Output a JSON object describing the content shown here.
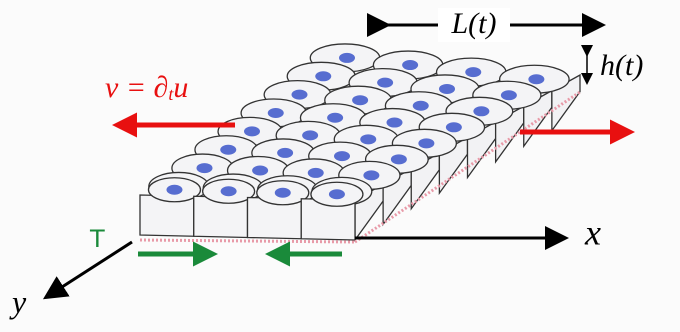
{
  "labels": {
    "length": "L(t)",
    "height": "h(t)",
    "velocity_v": "v = ∂",
    "velocity_sub": "t",
    "velocity_u": "u",
    "tension": "T",
    "x_axis": "x",
    "y_axis": "y"
  }
}
